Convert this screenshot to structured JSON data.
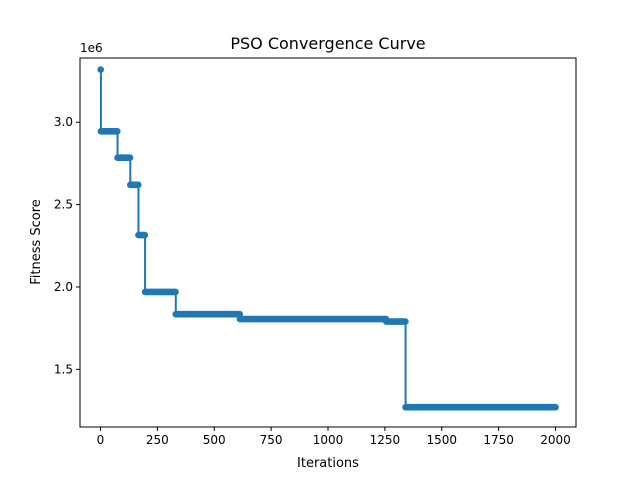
{
  "chart_data": {
    "type": "line",
    "title": "PSO Convergence Curve",
    "xlabel": "Iterations",
    "ylabel": "Fitness Score",
    "y_offset_label": "1e6",
    "xlim": [
      -90,
      2090
    ],
    "ylim": [
      1150000,
      3390000
    ],
    "x_ticks": [
      0,
      250,
      500,
      750,
      1000,
      1250,
      1500,
      1750,
      2000
    ],
    "x_tick_labels": [
      "0",
      "250",
      "500",
      "750",
      "1000",
      "1250",
      "1500",
      "1750",
      "2000"
    ],
    "y_ticks": [
      1500000,
      2000000,
      2500000,
      3000000
    ],
    "y_tick_labels": [
      "1.5",
      "2.0",
      "2.5",
      "3.0"
    ],
    "grid": false,
    "marker": "circle",
    "color": "#1f77b4",
    "series": [
      {
        "name": "",
        "steps": [
          {
            "x_start": 1,
            "x_end": 1,
            "y": 3320000
          },
          {
            "x_start": 2,
            "x_end": 74,
            "y": 2945000
          },
          {
            "x_start": 75,
            "x_end": 130,
            "y": 2785000
          },
          {
            "x_start": 131,
            "x_end": 166,
            "y": 2620000
          },
          {
            "x_start": 167,
            "x_end": 195,
            "y": 2315000
          },
          {
            "x_start": 196,
            "x_end": 330,
            "y": 1970000
          },
          {
            "x_start": 331,
            "x_end": 612,
            "y": 1835000
          },
          {
            "x_start": 613,
            "x_end": 1255,
            "y": 1805000
          },
          {
            "x_start": 1256,
            "x_end": 1340,
            "y": 1790000
          },
          {
            "x_start": 1341,
            "x_end": 2000,
            "y": 1270000
          }
        ]
      }
    ]
  }
}
